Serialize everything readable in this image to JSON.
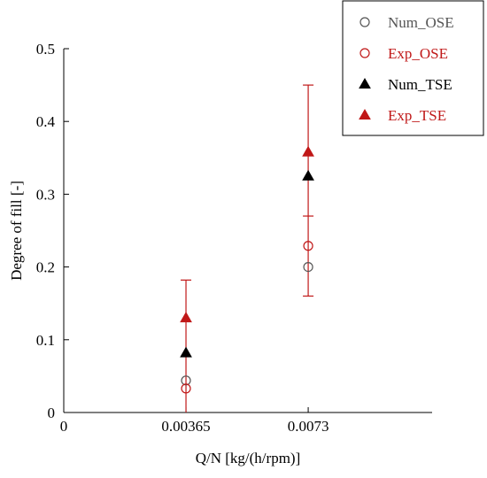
{
  "chart_data": {
    "type": "scatter",
    "title": "",
    "xlabel": "Q/N [kg/(h/rpm)]",
    "ylabel": "Degree of fill [-]",
    "x_ticks": [
      {
        "value": 0,
        "label": "0"
      },
      {
        "value": 0.00365,
        "label": "0.00365"
      },
      {
        "value": 0.0073,
        "label": "0.0073"
      }
    ],
    "y_ticks": [
      {
        "value": 0,
        "label": "0"
      },
      {
        "value": 0.1,
        "label": "0.1"
      },
      {
        "value": 0.2,
        "label": "0.2"
      },
      {
        "value": 0.3,
        "label": "0.3"
      },
      {
        "value": 0.4,
        "label": "0.4"
      },
      {
        "value": 0.5,
        "label": "0.5"
      }
    ],
    "xlim": [
      0,
      0.011
    ],
    "ylim": [
      0,
      0.5
    ],
    "grid": false,
    "legend_position": "top-right",
    "series": [
      {
        "name": "Num_OSE",
        "marker": "circle-open",
        "color": "#555555",
        "points": [
          {
            "x": 0.00365,
            "y": 0.044
          },
          {
            "x": 0.0073,
            "y": 0.2
          }
        ]
      },
      {
        "name": "Exp_OSE",
        "marker": "circle-open",
        "color": "#c01818",
        "points": [
          {
            "x": 0.00365,
            "y": 0.033
          },
          {
            "x": 0.0073,
            "y": 0.229
          }
        ]
      },
      {
        "name": "Num_TSE",
        "marker": "triangle-filled",
        "color": "#000000",
        "points": [
          {
            "x": 0.00365,
            "y": 0.082
          },
          {
            "x": 0.0073,
            "y": 0.325
          }
        ]
      },
      {
        "name": "Exp_TSE",
        "marker": "triangle-filled",
        "color": "#c01818",
        "points": [
          {
            "x": 0.00365,
            "y": 0.13,
            "err_low": 0.0,
            "err_high": 0.182
          },
          {
            "x": 0.0073,
            "y": 0.358,
            "err_low": 0.16,
            "err_high": 0.45
          }
        ]
      }
    ],
    "error_caps": [
      {
        "x": 0.0073,
        "y": 0.27
      }
    ]
  }
}
